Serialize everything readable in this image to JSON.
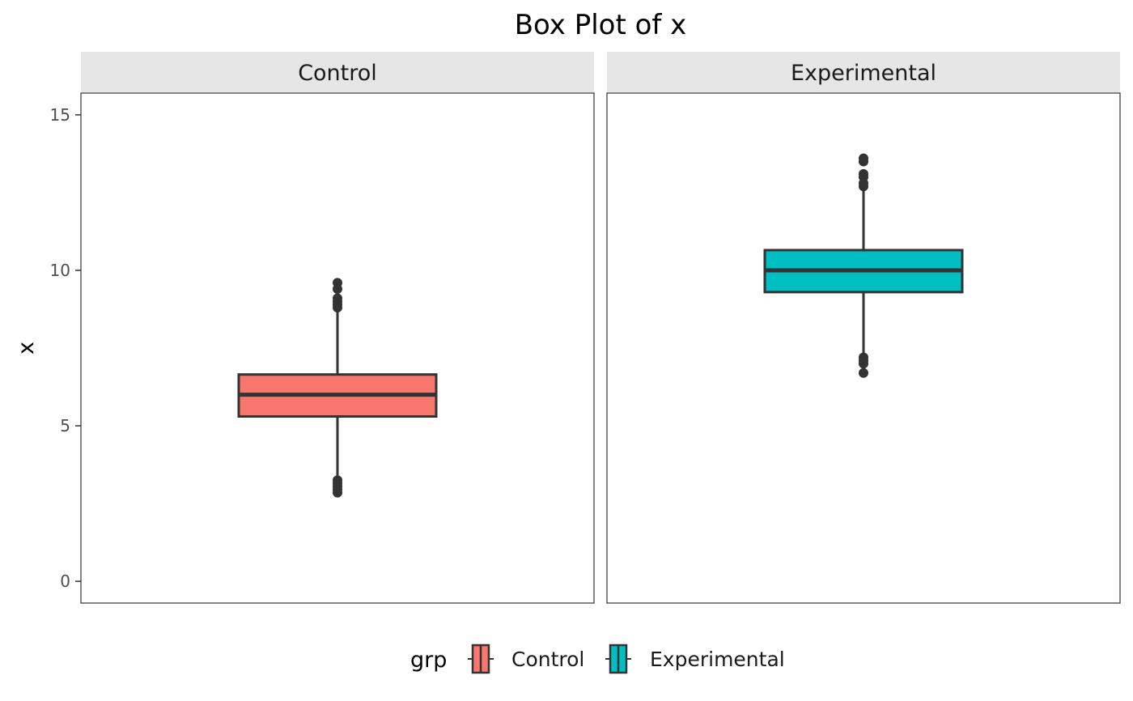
{
  "chart_data": {
    "type": "boxplot",
    "title": "Box Plot of x",
    "xlabel": "",
    "ylabel": "x",
    "ylim": [
      -0.7,
      15.7
    ],
    "y_ticks": [
      0,
      5,
      10,
      15
    ],
    "grid": false,
    "legend": {
      "title": "grp",
      "position": "bottom",
      "entries": [
        {
          "label": "Control",
          "color": "#F8766D"
        },
        {
          "label": "Experimental",
          "color": "#00BFC4"
        }
      ]
    },
    "facets": [
      {
        "label": "Control",
        "fill": "#F8766D",
        "stats": {
          "lower_whisker": 3.3,
          "q1": 5.3,
          "median": 6.0,
          "q3": 6.65,
          "upper_whisker": 8.7
        },
        "outliers": [
          2.85,
          2.95,
          3.05,
          3.15,
          3.25,
          8.8,
          8.9,
          9.0,
          9.1,
          9.4,
          9.6
        ]
      },
      {
        "label": "Experimental",
        "fill": "#00BFC4",
        "stats": {
          "lower_whisker": 7.3,
          "q1": 9.3,
          "median": 10.0,
          "q3": 10.65,
          "upper_whisker": 12.6
        },
        "outliers": [
          6.7,
          7.0,
          7.1,
          7.2,
          12.7,
          12.8,
          13.0,
          13.1,
          13.5,
          13.6
        ]
      }
    ]
  }
}
